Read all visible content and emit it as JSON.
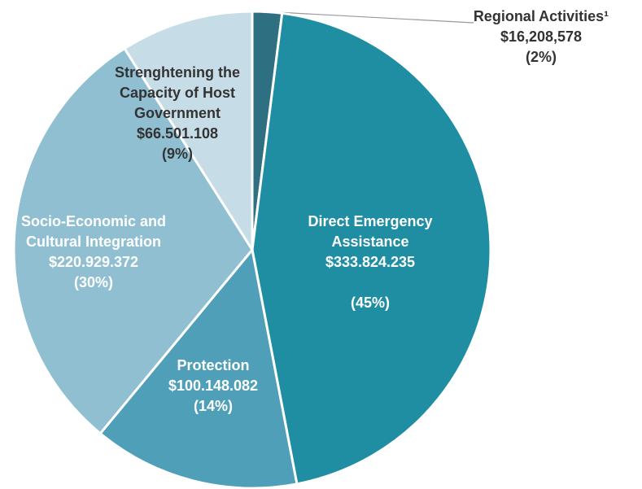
{
  "chart_data": {
    "type": "pie",
    "categories": [
      "Regional Activities¹",
      "Direct Emergency Assistance",
      "Protection",
      "Socio-Economic and Cultural Integration",
      "Strenghtening the Capacity of Host Government"
    ],
    "values": [
      2,
      45,
      14,
      30,
      9
    ],
    "value_labels": [
      "(2%)",
      "(45%)",
      "(14%)",
      "(30%)",
      "(9%)"
    ],
    "amounts": [
      16208578,
      333824235,
      100148082,
      220929372,
      66501108
    ],
    "amount_labels": [
      "$16,208,578",
      "$333.824.235",
      "$100.148.082",
      "$220.929.372",
      "$66.501.108"
    ],
    "colors": [
      "#2f6f82",
      "#1f8ea3",
      "#4f9fb8",
      "#8fbfd1",
      "#c6dde7"
    ]
  }
}
